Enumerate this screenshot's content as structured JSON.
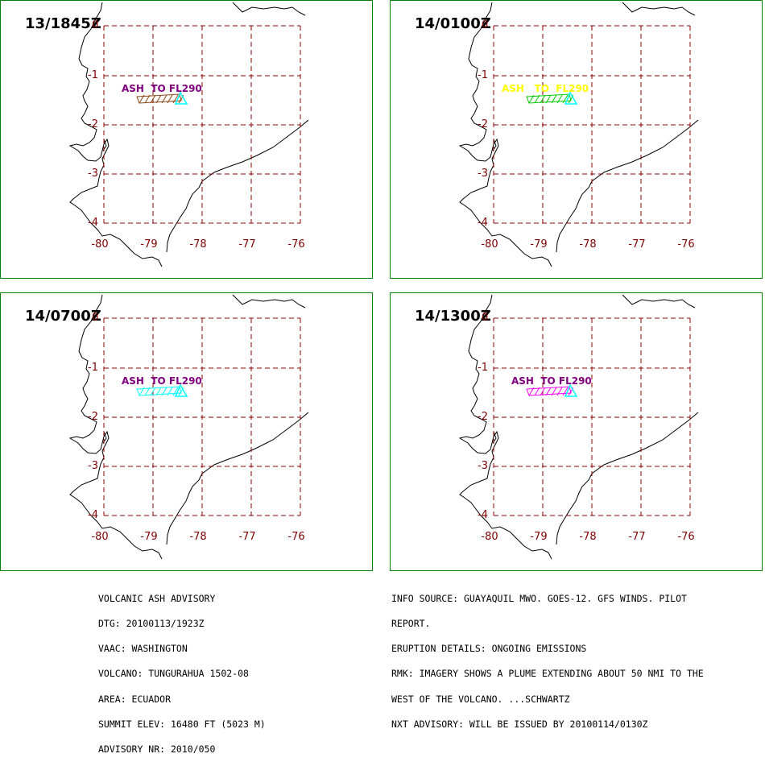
{
  "panels": [
    {
      "time": "13/1845Z",
      "ash_label": "ASH  TO FL290",
      "label_color": "#800080",
      "plume_color": "#8B4513",
      "lat_labels": [
        "0",
        "-1",
        "-2",
        "-3",
        "-4"
      ],
      "lon_labels": [
        "-80",
        "-79",
        "-78",
        "-77",
        "-76"
      ]
    },
    {
      "time": "14/0100Z",
      "ash_label": "ASH   TO  FL290",
      "label_color": "#FFFF00",
      "plume_color": "#00CC00",
      "lat_labels": [
        "0",
        "-1",
        "-2",
        "-3",
        "-4"
      ],
      "lon_labels": [
        "-80",
        "-79",
        "-78",
        "-77",
        "-76"
      ]
    },
    {
      "time": "14/0700Z",
      "ash_label": "ASH  TO FL290",
      "label_color": "#800080",
      "plume_color": "#00FFFF",
      "lat_labels": [
        "0",
        "-1",
        "-2",
        "-3",
        "-4"
      ],
      "lon_labels": [
        "-80",
        "-79",
        "-78",
        "-77",
        "-76"
      ]
    },
    {
      "time": "14/1300Z",
      "ash_label": "ASH  TO FL290",
      "label_color": "#800080",
      "plume_color": "#FF00FF",
      "lat_labels": [
        "0",
        "-1",
        "-2",
        "-3",
        "-4"
      ],
      "lon_labels": [
        "-80",
        "-79",
        "-78",
        "-77",
        "-76"
      ]
    }
  ],
  "volcano_marker_color": "#00FFFF",
  "grid_color": "#8B0000",
  "coast_color": "#000000",
  "panel_border_color": "#008000",
  "advisory_left": [
    "VOLCANIC ASH ADVISORY",
    "DTG: 20100113/1923Z",
    "VAAC: WASHINGTON",
    "VOLCANO: TUNGURAHUA 1502-08",
    "AREA: ECUADOR",
    "SUMMIT ELEV: 16480 FT (5023 M)",
    "ADVISORY NR: 2010/050"
  ],
  "advisory_right": [
    "INFO SOURCE: GUAYAQUIL MWO. GOES-12. GFS WINDS. PILOT",
    "REPORT.",
    "ERUPTION DETAILS: ONGOING EMISSIONS",
    "RMK: IMAGERY SHOWS A PLUME EXTENDING ABOUT 50 NMI TO THE",
    "WEST OF THE VOLCANO. ...SCHWARTZ",
    "NXT ADVISORY: WILL BE ISSUED BY 20100114/0130Z"
  ]
}
